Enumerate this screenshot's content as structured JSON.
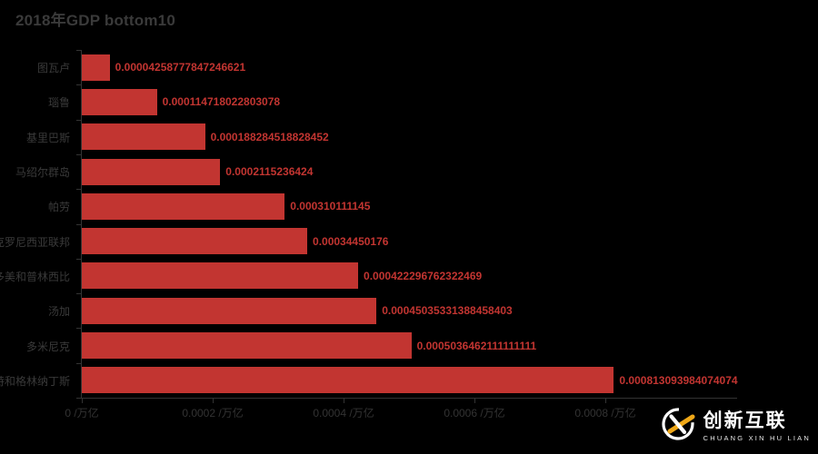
{
  "page": {
    "background_color": "#000000"
  },
  "title": {
    "text": "2018年GDP bottom10",
    "color": "#3a3a3a"
  },
  "chart_data": {
    "type": "bar",
    "orientation": "horizontal",
    "order": "top-to-bottom",
    "title": "2018年GDP bottom10",
    "categories": [
      "图瓦卢",
      "瑙鲁",
      "基里巴斯",
      "马绍尔群岛",
      "帕劳",
      "密克罗尼西亚联邦",
      "圣多美和普林西比",
      "汤加",
      "多米尼克",
      "圣文森特和格林纳丁斯"
    ],
    "values": [
      4.258777847246621e-05,
      0.000114718022803078,
      0.000188284518828452,
      0.0002115236424,
      0.000310111145,
      0.00034450176,
      0.000422296762322469,
      0.00045035331388458403,
      0.0005036462111111111,
      0.000813093984074074
    ],
    "value_labels": [
      "0.00004258777847246621",
      "0.000114718022803078",
      "0.000188284518828452",
      "0.0002115236424",
      "0.000310111145",
      "0.00034450176",
      "0.000422296762322469",
      "0.00045035331388458403",
      "0.0005036462111111111",
      "0.000813093984074074"
    ],
    "xlabel": "",
    "ylabel": "",
    "x_unit": "/万亿",
    "xlim": [
      0,
      0.001
    ],
    "x_ticks": {
      "values": [
        0,
        0.0002,
        0.0004,
        0.0006,
        0.0008
      ],
      "labels": [
        "0 /万亿",
        "0.0002 /万亿",
        "0.0004 /万亿",
        "0.0006 /万亿",
        "0.0008 /万亿"
      ]
    },
    "grid": "off",
    "legend": "none",
    "bar_color": "#c23531",
    "value_label_color": "#c23531",
    "axis_color": "#333333",
    "category_label_color": "#3a3a3a"
  },
  "watermark": {
    "logo_icon": "chuangxin-circle-x-logo",
    "brand": "创新互联",
    "sub": "CHUANG XIN HU LIAN",
    "accent_color": "#f0a818",
    "text_color": "#ffffff"
  }
}
